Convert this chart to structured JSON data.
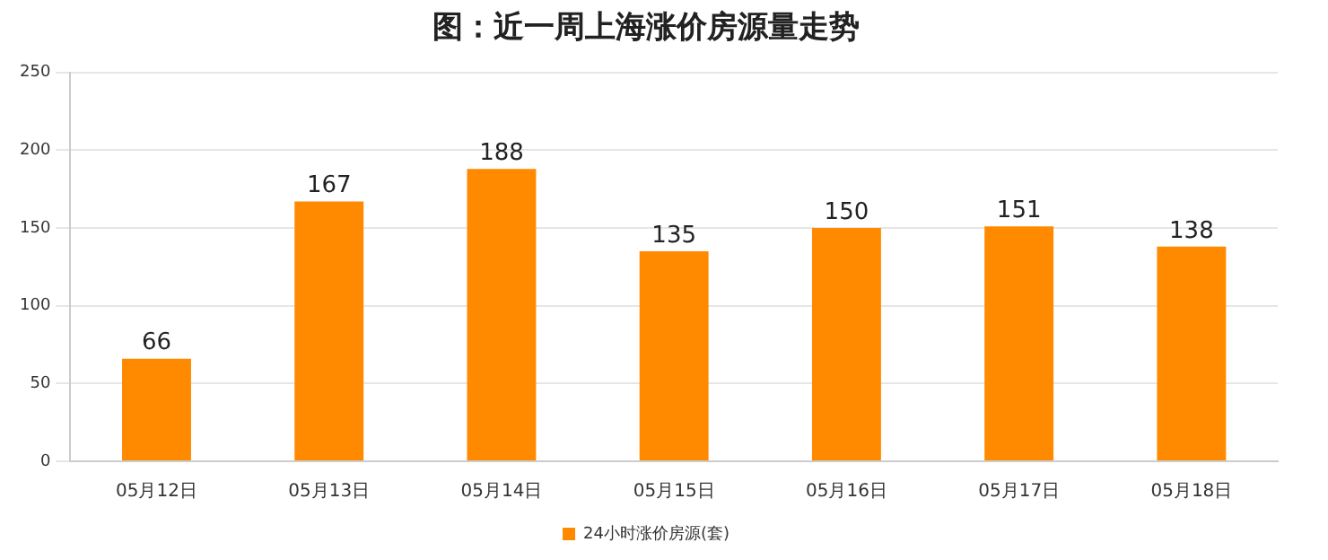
{
  "chart_data": {
    "type": "bar",
    "title": "图：近一周上海涨价房源量走势",
    "categories": [
      "05月12日",
      "05月13日",
      "05月14日",
      "05月15日",
      "05月16日",
      "05月17日",
      "05月18日"
    ],
    "series": [
      {
        "name": "24小时涨价房源(套)",
        "color": "#ff8a00",
        "values": [
          66,
          167,
          188,
          135,
          150,
          151,
          138
        ]
      }
    ],
    "ylim": [
      0,
      250
    ],
    "yticks": [
      0,
      50,
      100,
      150,
      200,
      250
    ],
    "grid": "y",
    "legend": "bottom",
    "data_labels": true
  }
}
